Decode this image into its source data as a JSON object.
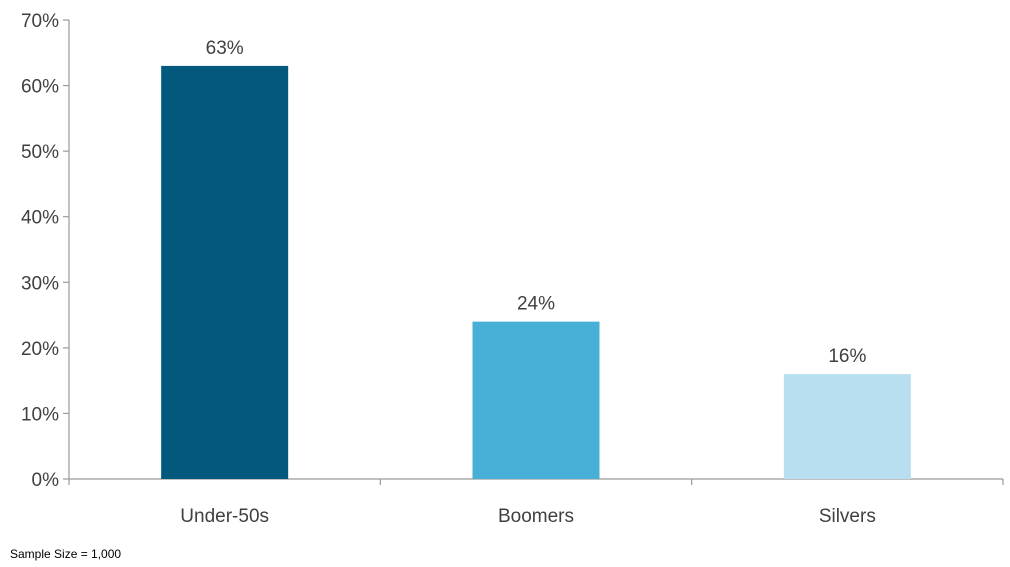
{
  "chart_data": {
    "type": "bar",
    "title": "",
    "xlabel": "",
    "ylabel": "",
    "categories": [
      "Under-50s",
      "Boomers",
      "Silvers"
    ],
    "values": [
      63,
      24,
      16
    ],
    "data_labels": [
      "63%",
      "24%",
      "16%"
    ],
    "colors": [
      "#03587E",
      "#48AFD6",
      "#B7DFEF"
    ],
    "ylim": [
      0,
      70
    ],
    "yticks": [
      0,
      10,
      20,
      30,
      40,
      50,
      60,
      70
    ],
    "ytick_labels": [
      "0%",
      "10%",
      "20%",
      "30%",
      "40%",
      "50%",
      "60%",
      "70%"
    ],
    "grid": false,
    "legend": "none"
  },
  "footnote": "Sample Size = 1,000"
}
